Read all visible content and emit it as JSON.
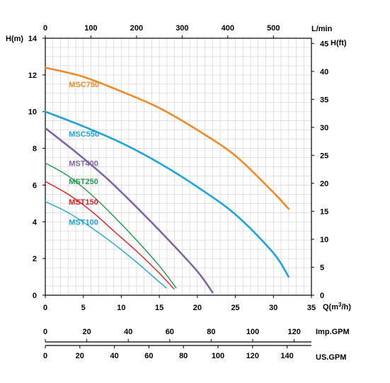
{
  "chart_data": {
    "type": "line",
    "x_axis": {
      "label": "Q(m³/h)",
      "label_prefix": "Q(m",
      "label_sup": "3",
      "label_suffix": "/h)",
      "range": [
        0,
        35
      ],
      "ticks": [
        0,
        5,
        10,
        15,
        20,
        25,
        30,
        35
      ]
    },
    "y_axis": {
      "label": "H(m)",
      "range": [
        0,
        14
      ],
      "ticks": [
        0,
        2,
        4,
        6,
        8,
        10,
        12,
        14
      ]
    },
    "secondary_x_axis": {
      "label": "L/min",
      "range_lmin": [
        0,
        583.33
      ],
      "ticks": [
        0,
        100,
        200,
        300,
        400,
        500
      ]
    },
    "secondary_y_axis": {
      "label": "H(ft)",
      "ticks": [
        0,
        5,
        10,
        15,
        20,
        25,
        30,
        35,
        40,
        45
      ]
    },
    "imp_gpm_axis": {
      "label": "Imp.GPM",
      "ticks": [
        0,
        20,
        40,
        60,
        80,
        100,
        120
      ]
    },
    "us_gpm_axis": {
      "label": "US.GPM",
      "ticks": [
        0,
        20,
        40,
        60,
        80,
        100,
        120,
        140
      ]
    },
    "grid": true,
    "series": [
      {
        "name": "MSC750",
        "color": "#f08a24",
        "label_at": [
          3.1,
          11.5
        ],
        "points": [
          [
            0,
            12.4
          ],
          [
            5,
            11.9
          ],
          [
            10,
            11.1
          ],
          [
            15,
            10.2
          ],
          [
            20,
            9.0
          ],
          [
            25,
            7.6
          ],
          [
            30,
            5.6
          ],
          [
            32,
            4.7
          ]
        ]
      },
      {
        "name": "MSC550",
        "color": "#1fa3dd",
        "label_at": [
          3.1,
          8.8
        ],
        "points": [
          [
            0,
            10.0
          ],
          [
            5,
            9.2
          ],
          [
            10,
            8.3
          ],
          [
            15,
            7.2
          ],
          [
            20,
            5.9
          ],
          [
            25,
            4.4
          ],
          [
            30,
            2.3
          ],
          [
            32,
            1.0
          ]
        ]
      },
      {
        "name": "MST400",
        "color": "#8064a8",
        "label_at": [
          3.1,
          7.2
        ],
        "points": [
          [
            0,
            9.1
          ],
          [
            4,
            7.8
          ],
          [
            8,
            6.4
          ],
          [
            12,
            4.8
          ],
          [
            16,
            3.1
          ],
          [
            20,
            1.3
          ],
          [
            22,
            0.15
          ]
        ]
      },
      {
        "name": "MST250",
        "color": "#1f9a4a",
        "label_at": [
          3.1,
          6.2
        ],
        "points": [
          [
            0,
            7.2
          ],
          [
            3,
            6.5
          ],
          [
            6,
            5.5
          ],
          [
            9,
            4.3
          ],
          [
            12,
            3.0
          ],
          [
            15,
            1.6
          ],
          [
            17.2,
            0.4
          ]
        ]
      },
      {
        "name": "MST150",
        "color": "#e02020",
        "label_at": [
          3.1,
          5.1
        ],
        "points": [
          [
            0,
            6.2
          ],
          [
            3,
            5.5
          ],
          [
            6,
            4.6
          ],
          [
            9,
            3.5
          ],
          [
            12,
            2.4
          ],
          [
            15,
            1.2
          ],
          [
            16.9,
            0.35
          ]
        ]
      },
      {
        "name": "MST100",
        "color": "#1fa3dd",
        "label_at": [
          3.1,
          4.0
        ],
        "points": [
          [
            0,
            5.1
          ],
          [
            3,
            4.5
          ],
          [
            6,
            3.7
          ],
          [
            9,
            2.8
          ],
          [
            12,
            1.8
          ],
          [
            14.5,
            0.9
          ],
          [
            15.9,
            0.4
          ]
        ]
      }
    ]
  }
}
